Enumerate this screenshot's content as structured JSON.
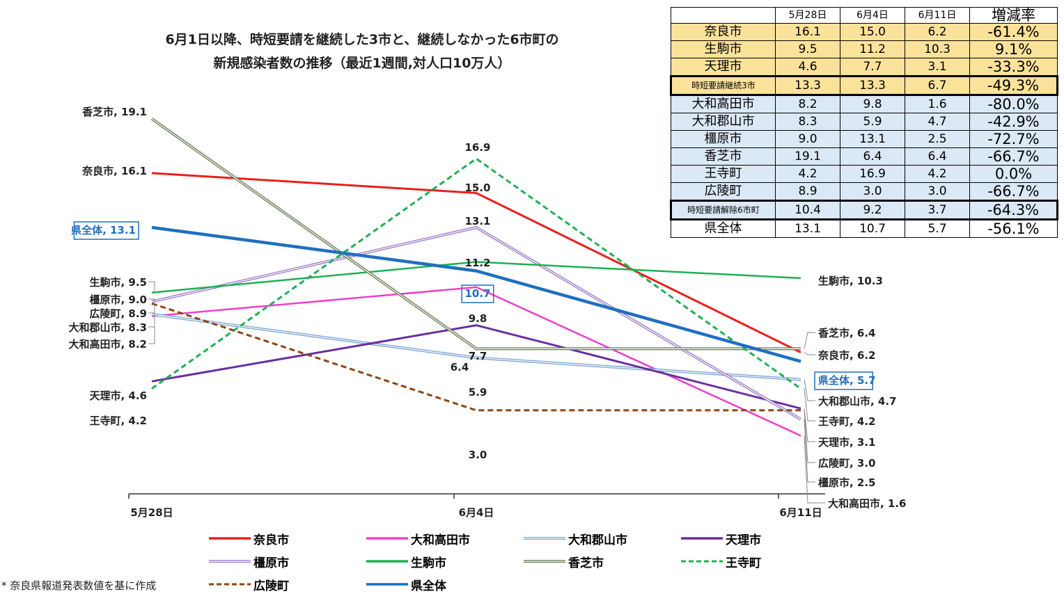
{
  "title_line1": "6月1日以降、時短要請を継続した3市と、継続しなかった6市町の",
  "title_line2": "新規感染者数の推移（最近1週間,対人口10万人）",
  "note": "* 奈良県報道発表数値を基に作成",
  "chart_data": {
    "type": "line",
    "categories": [
      "5月28日",
      "6月4日",
      "6月11日"
    ],
    "ylim": [
      0,
      20
    ],
    "grid": false,
    "legend_position": "bottom",
    "series": [
      {
        "name": "奈良市",
        "values": [
          16.1,
          15.0,
          6.2
        ],
        "color": "#e8201e",
        "dash": "solid",
        "width": 3,
        "start_label": "奈良市, 16.1",
        "end_label": "奈良市, 6.2",
        "mid_label": "15.0"
      },
      {
        "name": "大和高田市",
        "values": [
          8.2,
          9.8,
          1.6
        ],
        "color": "#ee3ec9",
        "dash": "solid",
        "width": 2.5,
        "start_label": "大和高田市, 8.2",
        "end_label": "大和高田市, 1.6",
        "mid_label": "9.8"
      },
      {
        "name": "大和郡山市",
        "values": [
          8.3,
          5.9,
          4.7
        ],
        "color": "#7fa7d4",
        "dash": "double",
        "width": 4,
        "start_label": "大和郡山市, 8.3",
        "end_label": "大和郡山市, 4.7",
        "mid_label": "5.9"
      },
      {
        "name": "天理市",
        "values": [
          4.6,
          7.7,
          3.1
        ],
        "color": "#6a2ea0",
        "dash": "solid",
        "width": 3,
        "start_label": "天理市, 4.6",
        "end_label": "天理市, 3.1",
        "mid_label": "7.7"
      },
      {
        "name": "橿原市",
        "values": [
          9.0,
          13.1,
          2.5
        ],
        "color": "#9d7fc8",
        "dash": "double",
        "width": 4,
        "start_label": "橿原市, 9.0",
        "end_label": "橿原市, 2.5",
        "mid_label": "13.1"
      },
      {
        "name": "生駒市",
        "values": [
          9.5,
          11.2,
          10.3
        ],
        "color": "#1db053",
        "dash": "solid",
        "width": 2.5,
        "start_label": "生駒市, 9.5",
        "end_label": "生駒市, 10.3",
        "mid_label": "11.2"
      },
      {
        "name": "香芝市",
        "values": [
          19.1,
          6.4,
          6.4
        ],
        "color": "#6e7f5a",
        "dash": "double",
        "width": 4,
        "start_label": "香芝市, 19.1",
        "end_label": "香芝市, 6.4",
        "mid_label": "6.4"
      },
      {
        "name": "王寺町",
        "values": [
          4.2,
          16.9,
          4.2
        ],
        "color": "#1db053",
        "dash": "dashed",
        "width": 3,
        "start_label": "王寺町, 4.2",
        "end_label": "王寺町, 4.2",
        "mid_label": "16.9"
      },
      {
        "name": "広陵町",
        "values": [
          8.9,
          3.0,
          3.0
        ],
        "color": "#8b4513",
        "dash": "dashed",
        "width": 3,
        "start_label": "広陵町, 8.9",
        "end_label": "広陵町, 3.0",
        "mid_label": "3.0"
      },
      {
        "name": "県全体",
        "values": [
          13.1,
          10.7,
          5.7
        ],
        "color": "#1f6fc0",
        "dash": "solid",
        "width": 4.5,
        "start_label": "県全体, 13.1",
        "end_label": "県全体, 5.7",
        "mid_label": "10.7",
        "boxed": true
      }
    ]
  },
  "table": {
    "headers": [
      "",
      "5月28日",
      "6月4日",
      "6月11日",
      "増減率"
    ],
    "rows": [
      {
        "group": "a",
        "cells": [
          "奈良市",
          "16.1",
          "15.0",
          "6.2",
          "-61.4%"
        ]
      },
      {
        "group": "a",
        "cells": [
          "生駒市",
          "9.5",
          "11.2",
          "10.3",
          "9.1%"
        ]
      },
      {
        "group": "a",
        "cells": [
          "天理市",
          "4.6",
          "7.7",
          "3.1",
          "-33.3%"
        ]
      },
      {
        "group": "a",
        "sum": true,
        "cells": [
          "時短要請継続3市",
          "13.3",
          "13.3",
          "6.7",
          "-49.3%"
        ]
      },
      {
        "group": "b",
        "cells": [
          "大和高田市",
          "8.2",
          "9.8",
          "1.6",
          "-80.0%"
        ]
      },
      {
        "group": "b",
        "cells": [
          "大和郡山市",
          "8.3",
          "5.9",
          "4.7",
          "-42.9%"
        ]
      },
      {
        "group": "b",
        "cells": [
          "橿原市",
          "9.0",
          "13.1",
          "2.5",
          "-72.7%"
        ]
      },
      {
        "group": "b",
        "cells": [
          "香芝市",
          "19.1",
          "6.4",
          "6.4",
          "-66.7%"
        ]
      },
      {
        "group": "b",
        "cells": [
          "王寺町",
          "4.2",
          "16.9",
          "4.2",
          "0.0%"
        ]
      },
      {
        "group": "b",
        "cells": [
          "広陵町",
          "8.9",
          "3.0",
          "3.0",
          "-66.7%"
        ]
      },
      {
        "group": "b",
        "sum": true,
        "cells": [
          "時短要請解除6市町",
          "10.4",
          "9.2",
          "3.7",
          "-64.3%"
        ]
      },
      {
        "group": "c",
        "cells": [
          "県全体",
          "13.1",
          "10.7",
          "5.7",
          "-56.1%"
        ]
      }
    ]
  },
  "legend": [
    {
      "name": "奈良市",
      "color": "#e8201e",
      "dash": "solid"
    },
    {
      "name": "大和高田市",
      "color": "#ee3ec9",
      "dash": "solid"
    },
    {
      "name": "大和郡山市",
      "color": "#7fa7d4",
      "dash": "double"
    },
    {
      "name": "天理市",
      "color": "#6a2ea0",
      "dash": "solid"
    },
    {
      "name": "橿原市",
      "color": "#9d7fc8",
      "dash": "double"
    },
    {
      "name": "生駒市",
      "color": "#1db053",
      "dash": "solid"
    },
    {
      "name": "香芝市",
      "color": "#6e7f5a",
      "dash": "double"
    },
    {
      "name": "王寺町",
      "color": "#1db053",
      "dash": "dashed"
    },
    {
      "name": "広陵町",
      "color": "#8b4513",
      "dash": "dashed"
    },
    {
      "name": "県全体",
      "color": "#1f6fc0",
      "dash": "solid"
    }
  ]
}
